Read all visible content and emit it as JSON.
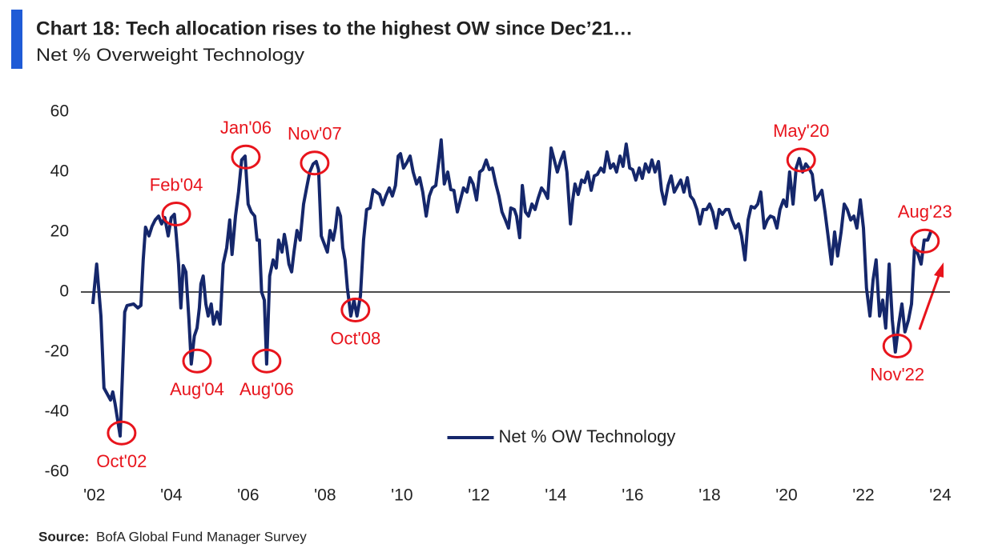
{
  "chart_data": {
    "type": "line",
    "title": "Chart 18: Tech allocation rises to the highest OW since Dec’21…",
    "subtitle": "Net % Overweight Technology",
    "source_label": "Source:",
    "source": "BofA Global Fund Manager Survey",
    "xlim": [
      2001.65,
      2024.25
    ],
    "xticks": [
      {
        "value": 2002,
        "label": "'02"
      },
      {
        "value": 2004,
        "label": "'04"
      },
      {
        "value": 2006,
        "label": "'06"
      },
      {
        "value": 2008,
        "label": "'08"
      },
      {
        "value": 2010,
        "label": "'10"
      },
      {
        "value": 2012,
        "label": "'12"
      },
      {
        "value": 2014,
        "label": "'14"
      },
      {
        "value": 2016,
        "label": "'16"
      },
      {
        "value": 2018,
        "label": "'18"
      },
      {
        "value": 2020,
        "label": "'20"
      },
      {
        "value": 2022,
        "label": "'22"
      },
      {
        "value": 2024,
        "label": "'24"
      }
    ],
    "ylim": [
      -60,
      60
    ],
    "yticks": [
      -60,
      -40,
      -20,
      0,
      20,
      40,
      60
    ],
    "legend": "center-bottom",
    "x": [
      2001.96,
      2002.06,
      2002.17,
      2002.25,
      2002.42,
      2002.48,
      2002.54,
      2002.67,
      2002.73,
      2002.79,
      2002.85,
      2003.02,
      2003.13,
      2003.21,
      2003.27,
      2003.33,
      2003.42,
      2003.5,
      2003.58,
      2003.67,
      2003.75,
      2003.83,
      2003.92,
      2004.0,
      2004.08,
      2004.13,
      2004.19,
      2004.25,
      2004.31,
      2004.38,
      2004.46,
      2004.52,
      2004.6,
      2004.67,
      2004.73,
      2004.77,
      2004.83,
      2004.9,
      2004.96,
      2005.04,
      2005.1,
      2005.19,
      2005.27,
      2005.35,
      2005.44,
      2005.52,
      2005.58,
      2005.67,
      2005.75,
      2005.83,
      2005.92,
      2006.0,
      2006.08,
      2006.17,
      2006.23,
      2006.29,
      2006.35,
      2006.42,
      2006.48,
      2006.56,
      2006.65,
      2006.73,
      2006.79,
      2006.88,
      2006.94,
      2007.0,
      2007.06,
      2007.13,
      2007.19,
      2007.27,
      2007.35,
      2007.44,
      2007.52,
      2007.6,
      2007.69,
      2007.77,
      2007.83,
      2007.9,
      2007.98,
      2008.06,
      2008.13,
      2008.21,
      2008.27,
      2008.33,
      2008.4,
      2008.46,
      2008.52,
      2008.58,
      2008.67,
      2008.75,
      2008.83,
      2008.92,
      2009.0,
      2009.08,
      2009.17,
      2009.25,
      2009.42,
      2009.5,
      2009.58,
      2009.67,
      2009.75,
      2009.83,
      2009.9,
      2009.96,
      2010.04,
      2010.13,
      2010.21,
      2010.29,
      2010.38,
      2010.46,
      2010.54,
      2010.63,
      2010.71,
      2010.79,
      2010.88,
      2010.96,
      2011.02,
      2011.1,
      2011.19,
      2011.27,
      2011.35,
      2011.44,
      2011.52,
      2011.6,
      2011.69,
      2011.77,
      2011.85,
      2011.94,
      2012.02,
      2012.1,
      2012.19,
      2012.27,
      2012.35,
      2012.44,
      2012.52,
      2012.6,
      2012.69,
      2012.77,
      2012.83,
      2012.92,
      2012.98,
      2013.06,
      2013.13,
      2013.21,
      2013.29,
      2013.38,
      2013.46,
      2013.54,
      2013.63,
      2013.71,
      2013.79,
      2013.88,
      2013.96,
      2014.04,
      2014.13,
      2014.21,
      2014.29,
      2014.38,
      2014.44,
      2014.5,
      2014.58,
      2014.67,
      2014.75,
      2014.83,
      2014.92,
      2015.0,
      2015.08,
      2015.17,
      2015.25,
      2015.33,
      2015.42,
      2015.5,
      2015.58,
      2015.67,
      2015.75,
      2015.83,
      2015.92,
      2016.0,
      2016.08,
      2016.17,
      2016.25,
      2016.33,
      2016.42,
      2016.5,
      2016.58,
      2016.67,
      2016.75,
      2016.83,
      2016.92,
      2017.0,
      2017.08,
      2017.17,
      2017.25,
      2017.33,
      2017.42,
      2017.5,
      2017.58,
      2017.67,
      2017.75,
      2017.83,
      2017.92,
      2018.0,
      2018.08,
      2018.17,
      2018.25,
      2018.33,
      2018.42,
      2018.5,
      2018.58,
      2018.67,
      2018.75,
      2018.83,
      2018.92,
      2019.0,
      2019.08,
      2019.17,
      2019.25,
      2019.33,
      2019.42,
      2019.5,
      2019.58,
      2019.67,
      2019.75,
      2019.83,
      2019.92,
      2020.0,
      2020.08,
      2020.17,
      2020.25,
      2020.33,
      2020.42,
      2020.5,
      2020.58,
      2020.67,
      2020.75,
      2020.83,
      2020.92,
      2021.0,
      2021.08,
      2021.17,
      2021.25,
      2021.33,
      2021.42,
      2021.5,
      2021.58,
      2021.67,
      2021.75,
      2021.83,
      2021.92,
      2022.0,
      2022.08,
      2022.17,
      2022.25,
      2022.33,
      2022.42,
      2022.5,
      2022.58,
      2022.67,
      2022.75,
      2022.83,
      2022.92,
      2023.0,
      2023.08,
      2023.17,
      2023.25,
      2023.33,
      2023.42,
      2023.5,
      2023.58,
      2023.67,
      2023.75
    ],
    "series": [
      {
        "name": "Net % OW Technology",
        "color": "#15276b",
        "values": [
          -4.0,
          9.3,
          -8.0,
          -32.0,
          -36.0,
          -33.3,
          -37.3,
          -48.0,
          -28.0,
          -6.7,
          -4.5,
          -4.0,
          -5.3,
          -4.5,
          10.7,
          21.6,
          18.7,
          21.9,
          24.0,
          25.3,
          22.7,
          24.8,
          18.7,
          24.8,
          25.9,
          18.7,
          9.3,
          -5.3,
          8.8,
          6.7,
          -9.3,
          -24.0,
          -14.7,
          -12.0,
          -5.3,
          2.7,
          5.3,
          -4.0,
          -8.0,
          -4.0,
          -10.7,
          -6.7,
          -10.7,
          9.3,
          14.7,
          24.0,
          12.5,
          25.3,
          33.3,
          44.0,
          45.3,
          29.3,
          26.7,
          25.3,
          17.3,
          17.3,
          0,
          -2.7,
          -24.0,
          5.3,
          10.7,
          8.0,
          17.3,
          13.3,
          19.2,
          15.2,
          9.3,
          6.7,
          13.3,
          20.5,
          17.3,
          29.3,
          34.7,
          40.0,
          42.7,
          43.5,
          40.8,
          18.7,
          16.0,
          13.3,
          20.5,
          17.3,
          21.3,
          28.0,
          25.3,
          14.7,
          10.7,
          1.3,
          -8.0,
          -2.7,
          -8.0,
          -1.3,
          17.3,
          27.5,
          28.0,
          34.1,
          32.5,
          29.1,
          32.0,
          34.7,
          32.0,
          35.5,
          45.3,
          46.1,
          41.3,
          43.2,
          45.3,
          40.0,
          36.0,
          38.1,
          33.3,
          25.3,
          32.0,
          34.7,
          35.5,
          44.0,
          50.7,
          36.0,
          40.0,
          34.1,
          33.9,
          26.7,
          30.7,
          34.7,
          33.3,
          38.1,
          36.0,
          30.7,
          40.0,
          40.8,
          44.0,
          40.8,
          41.3,
          36.0,
          32.0,
          26.7,
          24.0,
          21.3,
          28.0,
          27.5,
          25.3,
          18.1,
          35.5,
          26.7,
          25.3,
          29.3,
          27.5,
          31.2,
          34.7,
          33.3,
          31.2,
          48.0,
          44.0,
          40.0,
          44.0,
          46.7,
          40.0,
          22.7,
          30.7,
          36.0,
          32.5,
          37.3,
          36.5,
          40.0,
          33.9,
          38.7,
          39.2,
          41.3,
          40.0,
          46.7,
          41.3,
          42.7,
          40.0,
          45.3,
          41.9,
          49.3,
          41.3,
          40.8,
          37.3,
          41.3,
          37.9,
          42.7,
          40.0,
          44.0,
          40.0,
          43.5,
          33.9,
          29.3,
          35.5,
          38.7,
          33.3,
          35.5,
          37.3,
          33.3,
          38.1,
          32.0,
          30.7,
          27.5,
          22.7,
          27.5,
          27.5,
          29.3,
          26.7,
          21.3,
          27.5,
          25.9,
          27.5,
          27.5,
          24.0,
          21.3,
          22.7,
          18.7,
          10.7,
          24.0,
          28.5,
          28.0,
          29.3,
          33.3,
          21.3,
          24.0,
          25.3,
          24.8,
          21.3,
          27.5,
          30.7,
          28.5,
          40.0,
          29.3,
          41.3,
          44.5,
          40.0,
          42.7,
          41.3,
          39.2,
          30.7,
          32.0,
          33.9,
          26.7,
          18.7,
          9.3,
          20.0,
          12.0,
          20.0,
          29.3,
          27.5,
          24.0,
          25.3,
          21.3,
          30.7,
          21.3,
          1.3,
          -8.0,
          4.0,
          10.7,
          -8.0,
          -2.7,
          -12.0,
          9.3,
          -9.3,
          -20.0,
          -10.7,
          -4.0,
          -13.3,
          -9.3,
          -4.0,
          14.7,
          12.5,
          9.3,
          17.3,
          17.3,
          20.0
        ]
      }
    ],
    "annotation_color": "#e8141c",
    "annotations": [
      {
        "label": "Oct'02",
        "x": 2002.71,
        "y": -47
      },
      {
        "label": "Feb'04",
        "x": 2004.13,
        "y": 26
      },
      {
        "label": "Aug'04",
        "x": 2004.67,
        "y": -23
      },
      {
        "label": "Jan'06",
        "x": 2005.94,
        "y": 45
      },
      {
        "label": "Aug'06",
        "x": 2006.48,
        "y": -23
      },
      {
        "label": "Nov'07",
        "x": 2007.73,
        "y": 43
      },
      {
        "label": "Oct'08",
        "x": 2008.79,
        "y": -6
      },
      {
        "label": "May'20",
        "x": 2020.38,
        "y": 44
      },
      {
        "label": "Nov'22",
        "x": 2022.88,
        "y": -18
      },
      {
        "label": "Aug'23",
        "x": 2023.6,
        "y": 17
      }
    ]
  }
}
